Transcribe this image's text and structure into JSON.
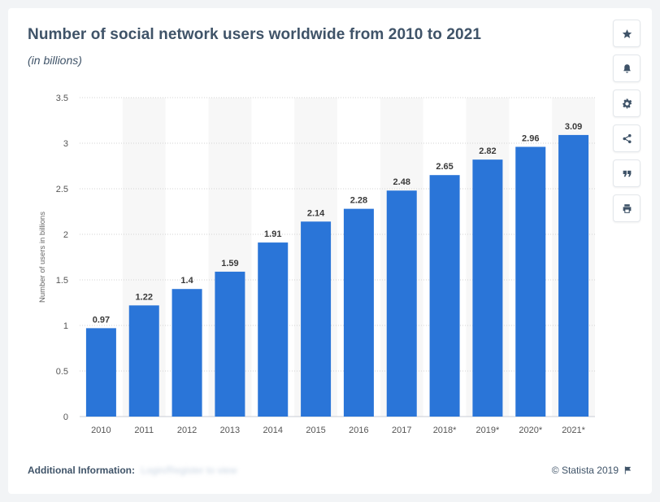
{
  "title": "Number of social network users worldwide from 2010 to 2021",
  "subtitle": "(in billions)",
  "toolbar": [
    "star-icon",
    "bell-icon",
    "gear-icon",
    "share-icon",
    "quote-icon",
    "print-icon"
  ],
  "footer": {
    "additional_label": "Additional Information:",
    "additional_value": "Login/Register to view",
    "copyright": "© Statista 2019"
  },
  "colors": {
    "bar": "#2a75d8",
    "title": "#3f5368",
    "band": "#f7f7f7"
  },
  "chart_data": {
    "type": "bar",
    "categories": [
      "2010",
      "2011",
      "2012",
      "2013",
      "2014",
      "2015",
      "2016",
      "2017",
      "2018*",
      "2019*",
      "2020*",
      "2021*"
    ],
    "values": [
      0.97,
      1.22,
      1.4,
      1.59,
      1.91,
      2.14,
      2.28,
      2.48,
      2.65,
      2.82,
      2.96,
      3.09
    ],
    "value_labels": [
      "0.97",
      "1.22",
      "1.4",
      "1.59",
      "1.91",
      "2.14",
      "2.28",
      "2.48",
      "2.65",
      "2.82",
      "2.96",
      "3.09"
    ],
    "title": "Number of social network users worldwide from 2010 to 2021",
    "xlabel": "",
    "ylabel": "Number of users in billions",
    "ylim": [
      0,
      3.5
    ],
    "yticks": [
      "0",
      "0.5",
      "1",
      "1.5",
      "2",
      "2.5",
      "3",
      "3.5"
    ],
    "grid": true,
    "legend": "none"
  }
}
